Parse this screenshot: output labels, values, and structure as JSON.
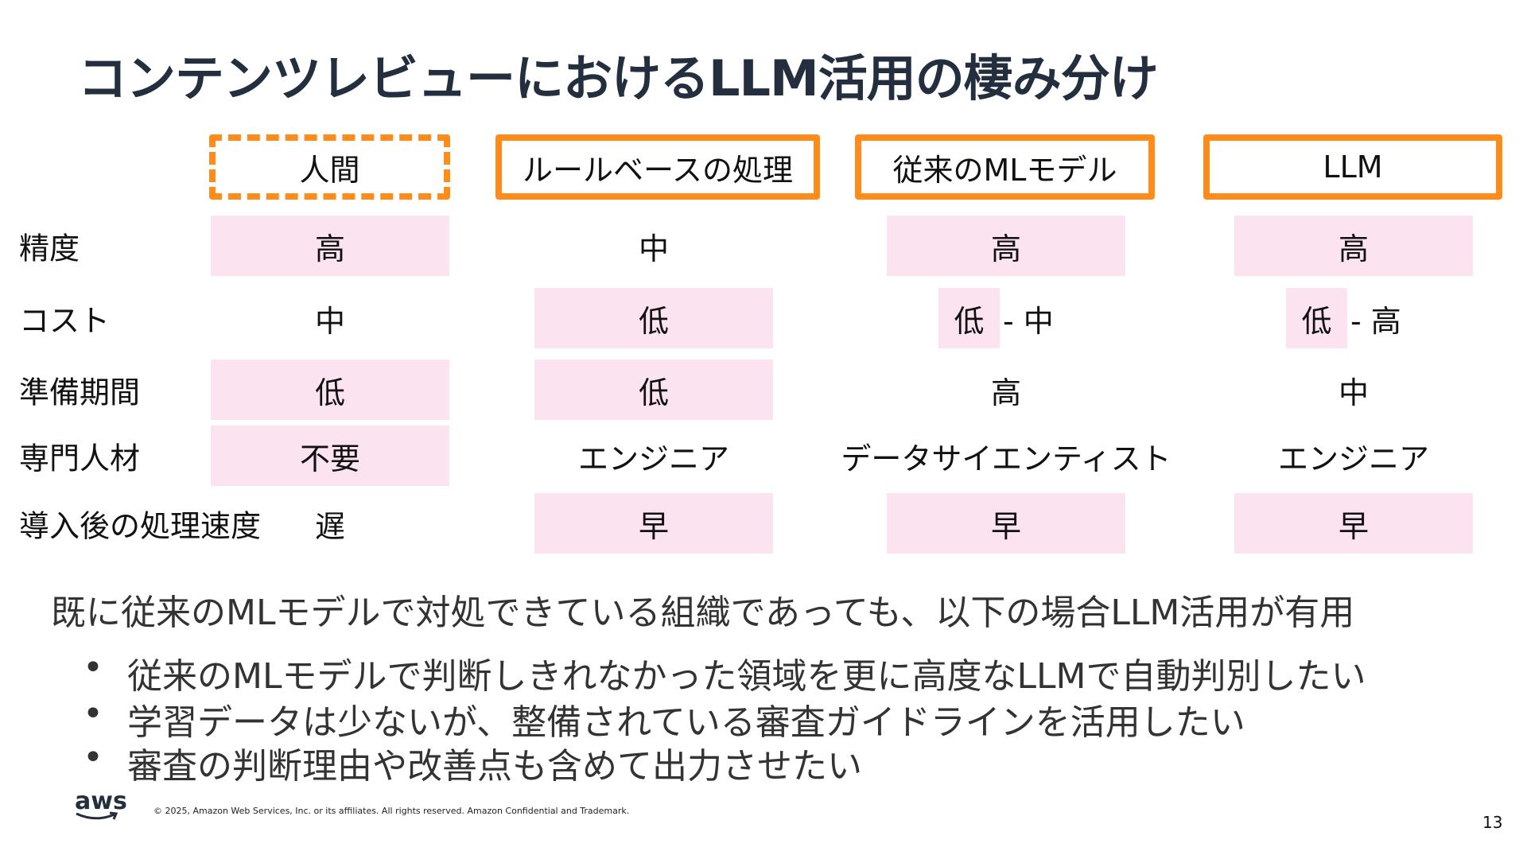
{
  "header": {
    "title": "コンテンツレビューにおけるLLM活用の棲み分け"
  },
  "table": {
    "columns": [
      {
        "label": "人間",
        "style": "dashed"
      },
      {
        "label": "ルールベースの処理",
        "style": "solid"
      },
      {
        "label": "従来のMLモデル",
        "style": "solid"
      },
      {
        "label": "LLM",
        "style": "solid"
      }
    ],
    "rows": [
      {
        "label": "精度",
        "cells": [
          {
            "text": "高",
            "highlighted": true
          },
          {
            "text": "中",
            "highlighted": false
          },
          {
            "text": "高",
            "highlighted": true
          },
          {
            "text": "高",
            "highlighted": true
          }
        ]
      },
      {
        "label": "コスト",
        "cells": [
          {
            "text": "中",
            "highlighted": false
          },
          {
            "text": "低",
            "highlighted": true
          },
          {
            "text": "低",
            "highlighted": true,
            "suffix": "- 中"
          },
          {
            "text": "低",
            "highlighted": true,
            "suffix": "- 高"
          }
        ]
      },
      {
        "label": "準備期間",
        "cells": [
          {
            "text": "低",
            "highlighted": true
          },
          {
            "text": "低",
            "highlighted": true
          },
          {
            "text": "高",
            "highlighted": false
          },
          {
            "text": "中",
            "highlighted": false
          }
        ]
      },
      {
        "label": "専門人材",
        "cells": [
          {
            "text": "不要",
            "highlighted": true
          },
          {
            "text": "エンジニア",
            "highlighted": false
          },
          {
            "text": "データサイエンティスト",
            "highlighted": false
          },
          {
            "text": "エンジニア",
            "highlighted": false
          }
        ]
      },
      {
        "label": "導入後の処理速度",
        "cells": [
          {
            "text": "遅",
            "highlighted": false
          },
          {
            "text": "早",
            "highlighted": true
          },
          {
            "text": "早",
            "highlighted": true
          },
          {
            "text": "早",
            "highlighted": true
          }
        ]
      }
    ]
  },
  "summary": {
    "text": "既に従来のMLモデルで対処できている組織であっても、以下の場合LLM活用が有用",
    "bullets": [
      "従来のMLモデルで判断しきれなかった領域を更に高度なLLMで自動判別したい",
      "学習データは少ないが、整備されている審査ガイドラインを活用したい",
      "審査の判断理由や改善点も含めて出力させたい"
    ]
  },
  "footer": {
    "logo": "aws",
    "copyright": "© 2025, Amazon Web Services, Inc. or its affiliates. All rights reserved. Amazon Confidential and Trademark.",
    "page_number": "13"
  }
}
